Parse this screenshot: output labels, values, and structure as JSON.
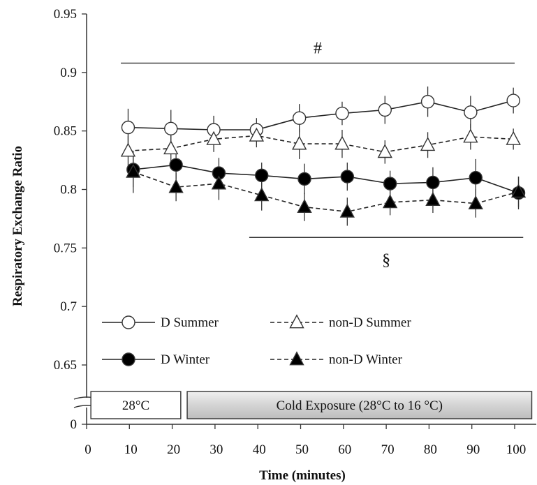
{
  "chart_data": {
    "type": "line",
    "xlabel": "Time (minutes)",
    "ylabel": "Respiratory Exchange Ratio",
    "xlim": [
      0,
      100
    ],
    "ylim": [
      0.65,
      0.95
    ],
    "y_axis_break": true,
    "x_ticks": [
      "0",
      "10",
      "20",
      "30",
      "40",
      "50",
      "60",
      "70",
      "80",
      "90",
      "100"
    ],
    "y_ticks": [
      "0",
      "0.65",
      "0.7",
      "0.75",
      "0.8",
      "0.85",
      "0.9",
      "0.95"
    ],
    "x": [
      10,
      20,
      30,
      40,
      50,
      60,
      70,
      80,
      90,
      100
    ],
    "series": [
      {
        "name": "D Summer",
        "marker": "circle-open",
        "line": "solid",
        "values": [
          0.853,
          0.852,
          0.851,
          0.851,
          0.861,
          0.865,
          0.868,
          0.875,
          0.866,
          0.876
        ],
        "err": [
          0.016,
          0.016,
          0.012,
          0.01,
          0.012,
          0.01,
          0.012,
          0.013,
          0.014,
          0.011
        ]
      },
      {
        "name": "non-D Summer",
        "marker": "triangle-open",
        "line": "dashed",
        "values": [
          0.833,
          0.835,
          0.843,
          0.846,
          0.839,
          0.839,
          0.832,
          0.838,
          0.845,
          0.843
        ],
        "err": [
          0.013,
          0.012,
          0.011,
          0.01,
          0.013,
          0.012,
          0.01,
          0.011,
          0.011,
          0.009
        ]
      },
      {
        "name": "D Winter",
        "marker": "circle-filled",
        "line": "solid",
        "values": [
          0.817,
          0.821,
          0.814,
          0.812,
          0.809,
          0.811,
          0.805,
          0.806,
          0.81,
          0.797
        ],
        "err": [
          0.015,
          0.012,
          0.013,
          0.011,
          0.013,
          0.012,
          0.011,
          0.013,
          0.016,
          0.014
        ]
      },
      {
        "name": "non-D Winter",
        "marker": "triangle-filled",
        "line": "dashed",
        "values": [
          0.815,
          0.802,
          0.805,
          0.795,
          0.785,
          0.781,
          0.789,
          0.791,
          0.788,
          0.798
        ],
        "err": [
          0.018,
          0.012,
          0.014,
          0.013,
          0.012,
          0.012,
          0.011,
          0.011,
          0.012,
          0.013
        ]
      }
    ],
    "annotations": [
      {
        "text": "#",
        "line_from": 8,
        "line_to": 100,
        "line_y": 0.908
      },
      {
        "text": "§",
        "line_from": 38,
        "line_to": 102,
        "line_y": 0.759
      }
    ],
    "condition_boxes": [
      {
        "label": "28°C",
        "from": 1,
        "to": 22,
        "style": "white"
      },
      {
        "label": "Cold Exposure (28°C to 16 °C)",
        "from": 23.5,
        "to": 104,
        "style": "gray"
      }
    ],
    "legend_position": "bottom-left",
    "grid": false
  }
}
